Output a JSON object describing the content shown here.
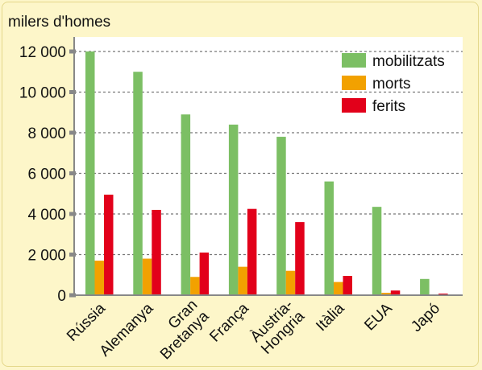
{
  "chart_data": {
    "type": "bar",
    "ylabel": "milers d'homes",
    "categories": [
      [
        "Rússia"
      ],
      [
        "Alemanya"
      ],
      [
        "Gran",
        "Bretanya"
      ],
      [
        "França"
      ],
      [
        "Àustria-",
        "Hongria"
      ],
      [
        "Itàlia"
      ],
      [
        "EUA"
      ],
      [
        "Japó"
      ]
    ],
    "series": [
      {
        "name": "mobilitzats",
        "color": "#7cbf64",
        "values": [
          12000,
          11000,
          8900,
          8400,
          7800,
          5600,
          4350,
          800
        ]
      },
      {
        "name": "morts",
        "color": "#f2a100",
        "values": [
          1700,
          1800,
          900,
          1400,
          1200,
          650,
          120,
          0
        ]
      },
      {
        "name": "ferits",
        "color": "#e2001a",
        "values": [
          4950,
          4200,
          2100,
          4250,
          3600,
          950,
          230,
          0
        ]
      }
    ],
    "ylim": [
      0,
      12000
    ],
    "yticks": [
      0,
      2000,
      4000,
      6000,
      8000,
      10000,
      12000
    ],
    "ytick_labels": [
      "0",
      "2 000",
      "4 000",
      "6 000",
      "8 000",
      "10 000",
      "12 000"
    ],
    "grid": "dashed-horizontal",
    "legend": "top-right",
    "colors": {
      "background": "#fdf6c9",
      "plot_background": "#ffffff",
      "axis": "#888888",
      "grid": "#777777"
    }
  }
}
